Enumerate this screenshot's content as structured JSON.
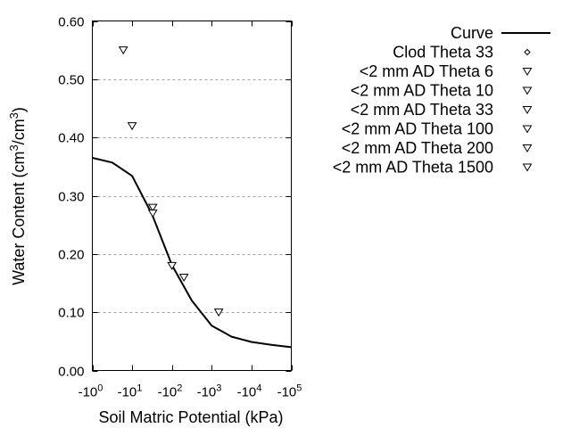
{
  "chart_data": {
    "type": "scatter",
    "xlabel": "Soil Matric Potential (kPa)",
    "ylabel_main": "Water Content (cm",
    "ylabel_sup1": "3",
    "ylabel_mid": "/cm",
    "ylabel_sup2": "3",
    "ylabel_end": ")",
    "x_scale": "log",
    "x_range_abs": [
      1,
      100000
    ],
    "x_ticks": [
      {
        "base": "-10",
        "exp": "0"
      },
      {
        "base": "-10",
        "exp": "1"
      },
      {
        "base": "-10",
        "exp": "2"
      },
      {
        "base": "-10",
        "exp": "3"
      },
      {
        "base": "-10",
        "exp": "4"
      },
      {
        "base": "-10",
        "exp": "5"
      }
    ],
    "ylim": [
      0,
      0.6
    ],
    "y_ticks": [
      "0.00",
      "0.10",
      "0.20",
      "0.30",
      "0.40",
      "0.50",
      "0.60"
    ],
    "grid": "horizontal dashed",
    "legend_position": "right",
    "curve": {
      "name": "Curve",
      "x_kpa": [
        1,
        3.16,
        10,
        31.6,
        100,
        316,
        1000,
        3160,
        10000,
        31600,
        100000
      ],
      "y": [
        0.365,
        0.357,
        0.334,
        0.268,
        0.181,
        0.12,
        0.077,
        0.058,
        0.049,
        0.044,
        0.04
      ]
    },
    "series": [
      {
        "name": "Clod Theta 33",
        "symbol": "diamond",
        "x_kpa": [],
        "y": []
      },
      {
        "name": "<2 mm AD Theta 6",
        "symbol": "triangle-down",
        "x_kpa": [
          6
        ],
        "y": [
          0.55
        ]
      },
      {
        "name": "<2 mm AD Theta 10",
        "symbol": "triangle-down",
        "x_kpa": [
          10
        ],
        "y": [
          0.42
        ]
      },
      {
        "name": "<2 mm AD Theta 33",
        "symbol": "triangle-down",
        "x_kpa": [
          33,
          33
        ],
        "y": [
          0.28,
          0.27
        ]
      },
      {
        "name": "<2 mm AD Theta 100",
        "symbol": "triangle-down",
        "x_kpa": [
          100
        ],
        "y": [
          0.18
        ]
      },
      {
        "name": "<2 mm AD Theta 200",
        "symbol": "triangle-down",
        "x_kpa": [
          200
        ],
        "y": [
          0.16
        ]
      },
      {
        "name": "<2 mm AD Theta 1500",
        "symbol": "triangle-down",
        "x_kpa": [
          1500
        ],
        "y": [
          0.1
        ]
      }
    ],
    "colors": {
      "line": "#000000",
      "grid": "#a0a0a0"
    }
  }
}
